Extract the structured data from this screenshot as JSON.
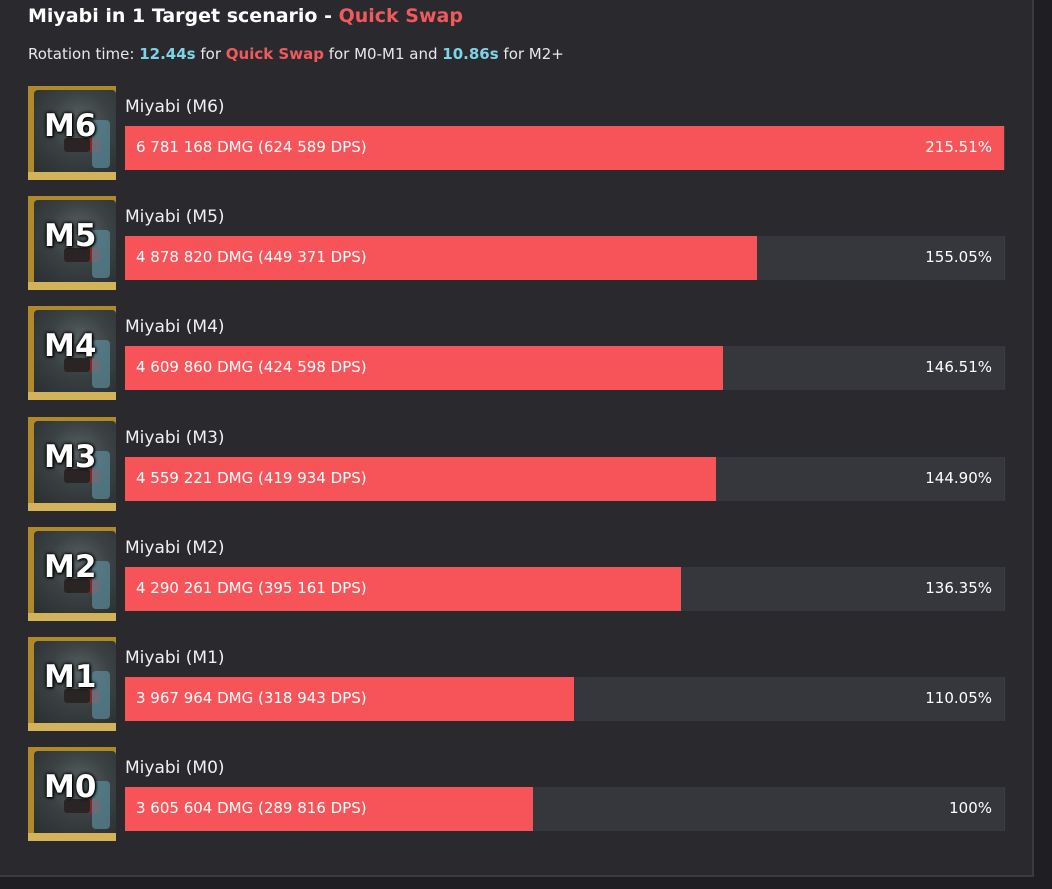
{
  "chart_data": {
    "type": "bar",
    "orientation": "horizontal",
    "title_parts": [
      "Miyabi in 1 Target scenario - ",
      "Quick Swap"
    ],
    "subtitle_parts": [
      "Rotation time: ",
      "12.44s",
      " for ",
      "Quick Swap",
      " for M0-M1 and ",
      "10.86s",
      " for M2+"
    ],
    "categories": [
      "Miyabi (M6)",
      "Miyabi (M5)",
      "Miyabi (M4)",
      "Miyabi (M3)",
      "Miyabi (M2)",
      "Miyabi (M1)",
      "Miyabi (M0)"
    ],
    "badges": [
      "M6",
      "M5",
      "M4",
      "M3",
      "M2",
      "M1",
      "M0"
    ],
    "values": [
      215.51,
      155.05,
      146.51,
      144.9,
      136.35,
      110.05,
      100
    ],
    "value_labels": [
      "215.51%",
      "155.05%",
      "146.51%",
      "144.90%",
      "136.35%",
      "110.05%",
      "100%"
    ],
    "damage_labels": [
      "6 781 168 DMG (624 589 DPS)",
      "4 878 820 DMG (449 371 DPS)",
      "4 609 860 DMG (424 598 DPS)",
      "4 559 221 DMG (419 934 DPS)",
      "4 290 261 DMG (395 161 DPS)",
      "3 967 964 DMG (318 943 DPS)",
      "3 605 604 DMG (289 816 DPS)"
    ],
    "damage": [
      6781168,
      4878820,
      4609860,
      4559221,
      4290261,
      3967964,
      3605604
    ],
    "dps": [
      624589,
      449371,
      424598,
      419934,
      395161,
      318943,
      289816
    ],
    "bar_color": "#f75459",
    "track_color": "#36363d",
    "accent_red": "#f05a5f",
    "accent_cyan": "#7ed4e6",
    "background": "#2a2a2e"
  }
}
